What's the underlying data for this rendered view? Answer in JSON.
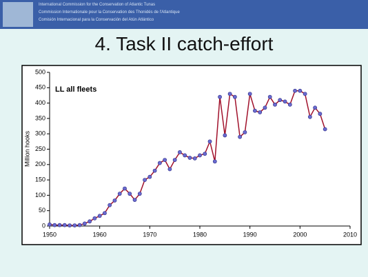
{
  "header": {
    "lines": [
      "International Commission for the Conservation of Atlantic Tunas",
      "Commission Internationale pour la Conservation des Thonidés de l'Atlantique",
      "Comisión Internacional para la Conservación del Atún Atlántico"
    ]
  },
  "chart_data": {
    "type": "line",
    "title": "4. Task II catch-effort",
    "annotation": "LL all fleets",
    "y_label": "Million hooks",
    "x": [
      1950,
      1951,
      1952,
      1953,
      1954,
      1955,
      1956,
      1957,
      1958,
      1959,
      1960,
      1961,
      1962,
      1963,
      1964,
      1965,
      1966,
      1967,
      1968,
      1969,
      1970,
      1971,
      1972,
      1973,
      1974,
      1975,
      1976,
      1977,
      1978,
      1979,
      1980,
      1981,
      1982,
      1983,
      1984,
      1985,
      1986,
      1987,
      1988,
      1989,
      1990,
      1991,
      1992,
      1993,
      1994,
      1995,
      1996,
      1997,
      1998,
      1999,
      2000,
      2001,
      2002,
      2003,
      2004,
      2005
    ],
    "series": [
      {
        "color": "#a0102a",
        "marker_color": "#6a6ad0",
        "values": [
          5,
          3,
          3,
          3,
          2,
          2,
          3,
          8,
          15,
          25,
          33,
          42,
          68,
          83,
          105,
          122,
          105,
          85,
          105,
          150,
          160,
          180,
          205,
          215,
          185,
          215,
          240,
          230,
          222,
          220,
          230,
          235,
          275,
          210,
          420,
          295,
          430,
          420,
          290,
          305,
          430,
          375,
          370,
          385,
          420,
          395,
          410,
          405,
          395,
          440,
          440,
          430,
          355,
          385,
          365,
          315
        ]
      }
    ],
    "xlim": [
      1950,
      2010
    ],
    "xticks": [
      1950,
      1960,
      1970,
      1980,
      1990,
      2000,
      2010
    ],
    "ylim": [
      0,
      500
    ],
    "yticks": [
      0,
      50,
      100,
      150,
      200,
      250,
      300,
      350,
      400,
      450,
      500
    ]
  }
}
